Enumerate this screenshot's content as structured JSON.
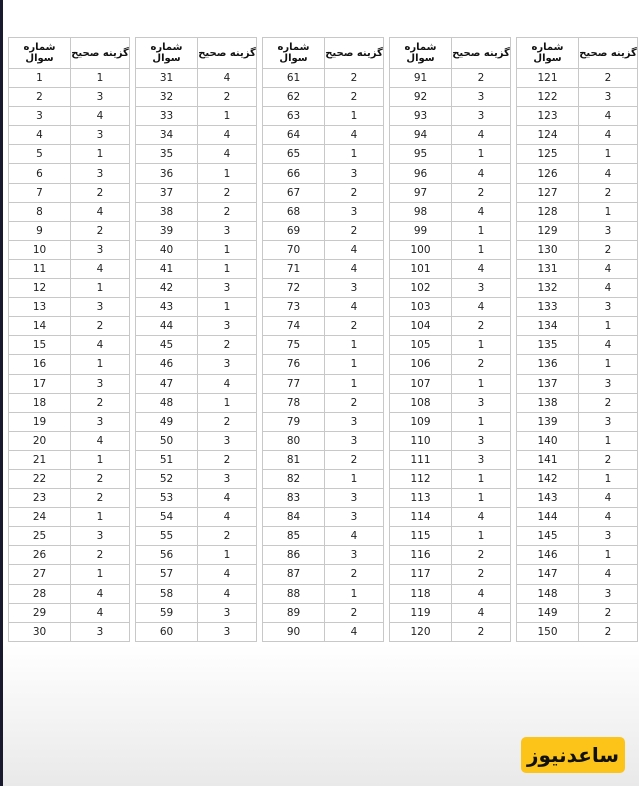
{
  "header": {
    "question": "شماره سوال",
    "answer": "گزینه صحیح"
  },
  "tables": [
    {
      "q": [
        1,
        2,
        3,
        4,
        5,
        6,
        7,
        8,
        9,
        10,
        11,
        12,
        13,
        14,
        15,
        16,
        17,
        18,
        19,
        20,
        21,
        22,
        23,
        24,
        25,
        26,
        27,
        28,
        29,
        30
      ],
      "a": [
        1,
        3,
        4,
        3,
        1,
        3,
        2,
        4,
        2,
        3,
        4,
        1,
        3,
        2,
        4,
        1,
        3,
        2,
        3,
        4,
        1,
        2,
        2,
        1,
        3,
        2,
        1,
        4,
        4,
        3
      ]
    },
    {
      "q": [
        31,
        32,
        33,
        34,
        35,
        36,
        37,
        38,
        39,
        40,
        41,
        42,
        43,
        44,
        45,
        46,
        47,
        48,
        49,
        50,
        51,
        52,
        53,
        54,
        55,
        56,
        57,
        58,
        59,
        60
      ],
      "a": [
        4,
        2,
        1,
        4,
        4,
        1,
        2,
        2,
        3,
        1,
        1,
        3,
        1,
        3,
        2,
        3,
        4,
        1,
        2,
        3,
        2,
        3,
        4,
        4,
        2,
        1,
        4,
        4,
        3,
        3
      ]
    },
    {
      "q": [
        61,
        62,
        63,
        64,
        65,
        66,
        67,
        68,
        69,
        70,
        71,
        72,
        73,
        74,
        75,
        76,
        77,
        78,
        79,
        80,
        81,
        82,
        83,
        84,
        85,
        86,
        87,
        88,
        89,
        90
      ],
      "a": [
        2,
        2,
        1,
        4,
        1,
        3,
        2,
        3,
        2,
        4,
        4,
        3,
        4,
        2,
        1,
        1,
        1,
        2,
        3,
        3,
        2,
        1,
        3,
        3,
        4,
        3,
        2,
        1,
        2,
        4
      ]
    },
    {
      "q": [
        91,
        92,
        93,
        94,
        95,
        96,
        97,
        98,
        99,
        100,
        101,
        102,
        103,
        104,
        105,
        106,
        107,
        108,
        109,
        110,
        111,
        112,
        113,
        114,
        115,
        116,
        117,
        118,
        119,
        120
      ],
      "a": [
        2,
        3,
        3,
        4,
        1,
        4,
        2,
        4,
        1,
        1,
        4,
        3,
        4,
        2,
        1,
        2,
        1,
        3,
        1,
        3,
        3,
        1,
        1,
        4,
        1,
        2,
        2,
        4,
        4,
        2
      ]
    },
    {
      "q": [
        121,
        122,
        123,
        124,
        125,
        126,
        127,
        128,
        129,
        130,
        131,
        132,
        133,
        134,
        135,
        136,
        137,
        138,
        139,
        140,
        141,
        142,
        143,
        144,
        145,
        146,
        147,
        148,
        149,
        150
      ],
      "a": [
        2,
        3,
        4,
        4,
        1,
        4,
        2,
        1,
        3,
        2,
        4,
        4,
        3,
        1,
        4,
        1,
        3,
        2,
        3,
        1,
        2,
        1,
        4,
        4,
        3,
        1,
        4,
        3,
        2,
        2
      ]
    }
  ],
  "logo": {
    "text": "ساعدنیوز",
    "color": "#fcc419"
  }
}
